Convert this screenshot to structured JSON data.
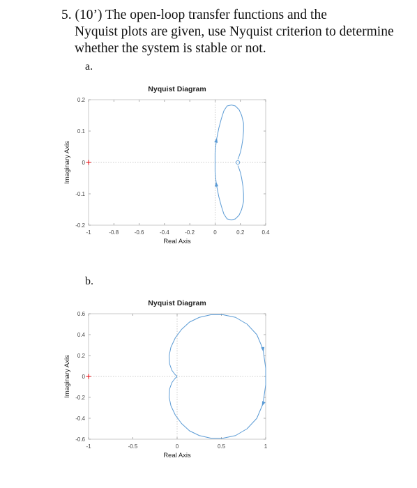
{
  "question": {
    "line1": "5. (10’) The open-loop transfer functions and the",
    "rest": "Nyquist plots are given, use Nyquist criterion to determine whether the system is stable or not."
  },
  "chart_data": [
    {
      "label": "a.",
      "type": "line",
      "title": "Nyquist Diagram",
      "xlabel": "Real Axis",
      "ylabel": "Imaginary Axis",
      "xlim": [
        -1,
        0.4
      ],
      "ylim": [
        -0.2,
        0.2
      ],
      "xticks": [
        "-1",
        "-0.8",
        "-0.6",
        "-0.4",
        "-0.2",
        "0",
        "0.2",
        "0.4"
      ],
      "yticks": [
        "0.2",
        "0.1",
        "0",
        "-0.1",
        "-0.2"
      ],
      "critical_point": [
        -1,
        0
      ],
      "line_color": "#5b9bd5",
      "critical_color": "#e8262a",
      "series": [
        {
          "x": [
            0.18,
            0.19,
            0.2,
            0.21,
            0.22,
            0.225,
            0.225,
            0.21,
            0.19,
            0.16,
            0.13,
            0.095,
            0.07,
            0.05,
            0.03,
            0.01,
            0.0,
            0.0,
            0.0,
            0.01,
            0.03,
            0.05,
            0.07,
            0.095,
            0.13,
            0.16,
            0.19,
            0.21,
            0.225,
            0.225,
            0.22,
            0.21,
            0.2,
            0.19,
            0.18
          ],
          "y": [
            -0.01,
            -0.02,
            -0.032,
            -0.05,
            -0.075,
            -0.1,
            -0.125,
            -0.15,
            -0.168,
            -0.18,
            -0.183,
            -0.18,
            -0.165,
            -0.14,
            -0.11,
            -0.07,
            -0.03,
            0.0,
            0.03,
            0.07,
            0.11,
            0.14,
            0.165,
            0.18,
            0.183,
            0.18,
            0.168,
            0.15,
            0.125,
            0.1,
            0.075,
            0.05,
            0.032,
            0.02,
            0.01
          ]
        }
      ]
    },
    {
      "label": "b.",
      "type": "line",
      "title": "Nyquist Diagram",
      "xlabel": "Real Axis",
      "ylabel": "Imaginary Axis",
      "xlim": [
        -1,
        1
      ],
      "ylim": [
        -0.6,
        0.6
      ],
      "xticks": [
        "-1",
        "-0.5",
        "0",
        "0.5",
        "1"
      ],
      "yticks": [
        "0.6",
        "0.4",
        "0.2",
        "0",
        "-0.2",
        "-0.4",
        "-0.6"
      ],
      "critical_point": [
        -1,
        0
      ],
      "line_color": "#5b9bd5",
      "critical_color": "#e8262a",
      "series": [
        {
          "x": [
            0.0,
            -0.025,
            -0.06,
            -0.085,
            -0.09,
            -0.07,
            -0.02,
            0.05,
            0.14,
            0.25,
            0.38,
            0.52,
            0.66,
            0.79,
            0.9,
            0.97,
            1.0,
            1.0,
            0.97,
            0.9,
            0.79,
            0.66,
            0.52,
            0.38,
            0.25,
            0.14,
            0.05,
            -0.02,
            -0.07,
            -0.09,
            -0.085,
            -0.06,
            -0.025,
            0.0
          ],
          "y": [
            0.0,
            0.02,
            0.06,
            0.12,
            0.2,
            0.28,
            0.37,
            0.45,
            0.52,
            0.565,
            0.59,
            0.59,
            0.565,
            0.5,
            0.4,
            0.26,
            0.08,
            -0.08,
            -0.26,
            -0.4,
            -0.5,
            -0.565,
            -0.59,
            -0.59,
            -0.565,
            -0.52,
            -0.45,
            -0.37,
            -0.28,
            -0.2,
            -0.12,
            -0.06,
            -0.02,
            0.0
          ]
        }
      ]
    }
  ]
}
